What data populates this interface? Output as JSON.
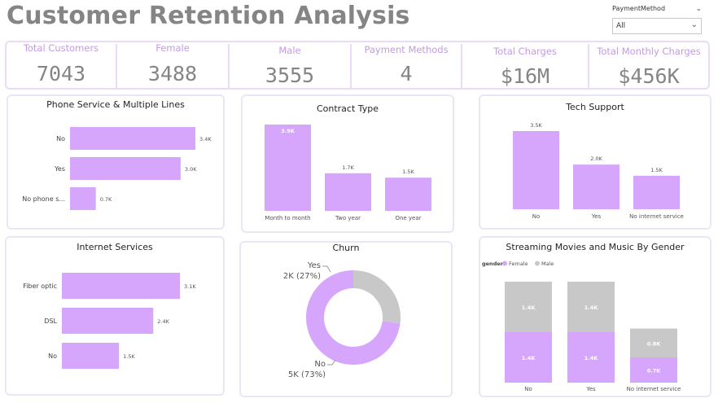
{
  "title": "Customer Retention Analysis",
  "slicer": {
    "label": "PaymentMethod",
    "value": "All"
  },
  "kpis": [
    {
      "label": "Total Customers",
      "value": "7043"
    },
    {
      "label": "Female",
      "value": "3488"
    },
    {
      "label": "Male",
      "value": "3555"
    },
    {
      "label": "Payment Methods",
      "value": "4"
    },
    {
      "label": "Total Charges",
      "value": "$16M"
    },
    {
      "label": "Total Monthly Charges",
      "value": "$456K"
    }
  ],
  "colors": {
    "purple": "#d5a6fb",
    "gray": "#c8c8c8",
    "kpi_label": "#c39ae6",
    "kpi_value": "#858585",
    "border": "#eadcf6"
  },
  "chart_data": [
    {
      "id": "phone",
      "type": "bar",
      "orientation": "horizontal",
      "title": "Phone Service & Multiple Lines",
      "categories": [
        "No",
        "Yes",
        "No phone s..."
      ],
      "values": [
        3400,
        3000,
        700
      ],
      "labels": [
        "3.4K",
        "3.0K",
        "0.7K"
      ]
    },
    {
      "id": "contract",
      "type": "bar",
      "orientation": "vertical",
      "title": "Contract Type",
      "categories": [
        "Month to month",
        "Two year",
        "One year"
      ],
      "values": [
        3900,
        1700,
        1500
      ],
      "labels": [
        "3.9K",
        "1.7K",
        "1.5K"
      ]
    },
    {
      "id": "tech",
      "type": "bar",
      "orientation": "vertical",
      "title": "Tech Support",
      "categories": [
        "No",
        "Yes",
        "No internet service"
      ],
      "values": [
        3500,
        2000,
        1500
      ],
      "labels": [
        "3.5K",
        "2.0K",
        "1.5K"
      ]
    },
    {
      "id": "internet",
      "type": "bar",
      "orientation": "horizontal",
      "title": "Internet Services",
      "categories": [
        "Fiber optic",
        "DSL",
        "No"
      ],
      "values": [
        3100,
        2400,
        1500
      ],
      "labels": [
        "3.1K",
        "2.4K",
        "1.5K"
      ]
    },
    {
      "id": "churn",
      "type": "pie",
      "title": "Churn",
      "slices": [
        {
          "name": "Yes",
          "value": 27,
          "label": "2K (27%)",
          "color": "#c8c8c8"
        },
        {
          "name": "No",
          "value": 73,
          "label": "5K (73%)",
          "color": "#d5a6fb"
        }
      ]
    },
    {
      "id": "streaming",
      "type": "bar",
      "orientation": "stacked",
      "title": "Streaming Movies and Music By Gender",
      "legend_title": "gender",
      "categories": [
        "No",
        "Yes",
        "No internet service"
      ],
      "series": [
        {
          "name": "Female",
          "values": [
            1400,
            1400,
            700
          ],
          "labels": [
            "1.4K",
            "1.4K",
            "0.7K"
          ]
        },
        {
          "name": "Male",
          "values": [
            1400,
            1400,
            800
          ],
          "labels": [
            "1.4K",
            "1.4K",
            "0.8K"
          ]
        }
      ]
    }
  ]
}
